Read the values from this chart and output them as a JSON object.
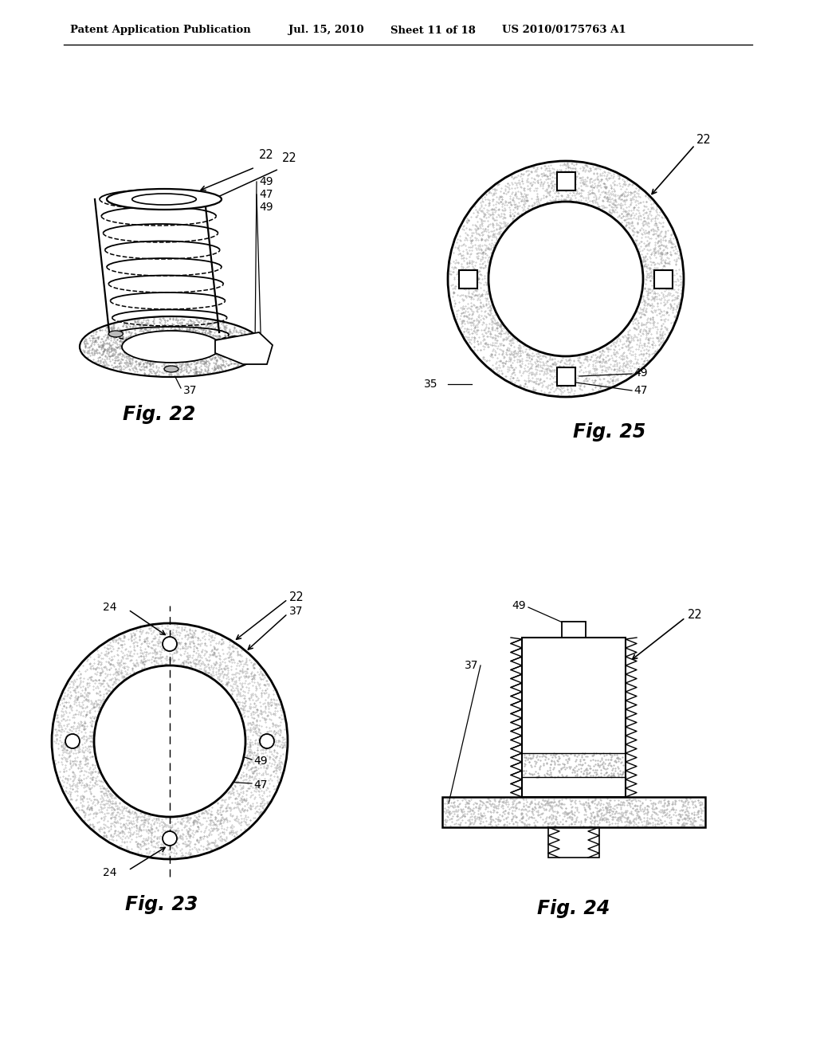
{
  "bg_color": "#ffffff",
  "header_text": "Patent Application Publication",
  "header_date": "Jul. 15, 2010",
  "header_sheet": "Sheet 11 of 18",
  "header_patent": "US 2010/0175763 A1"
}
